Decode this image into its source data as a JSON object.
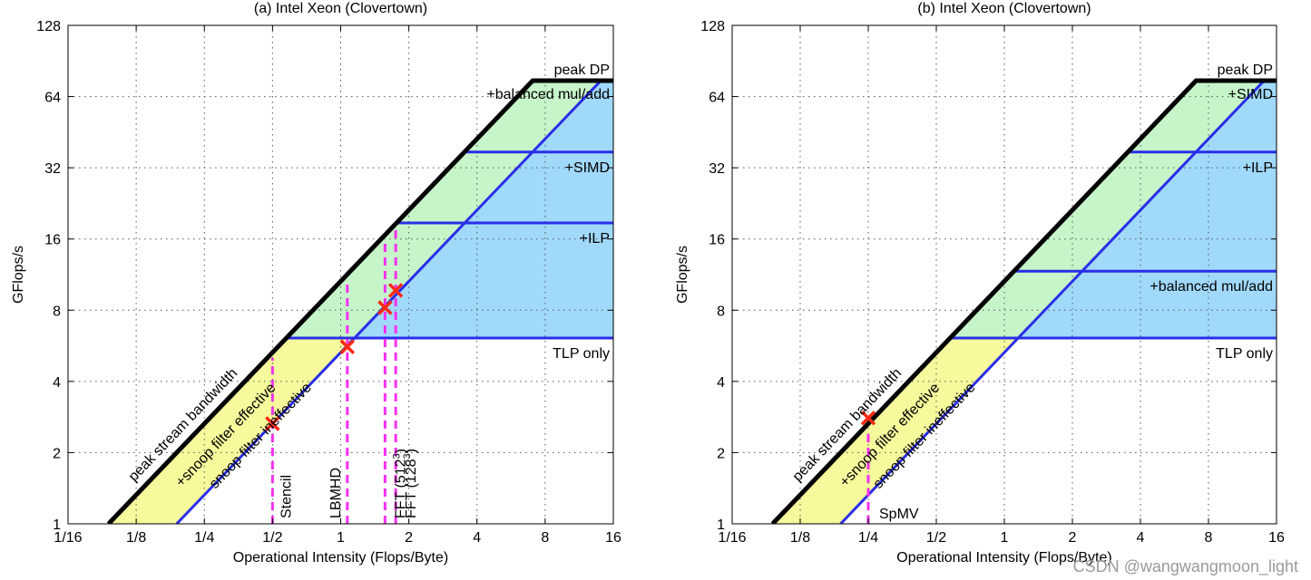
{
  "chart_data": [
    {
      "type": "line",
      "subtype": "roofline",
      "title": "(a) Intel Xeon (Clovertown)",
      "xlabel": "Operational Intensity (Flops/Byte)",
      "ylabel": "GFlops/s",
      "xscale": "log2",
      "yscale": "log2",
      "xlim": [
        0.0625,
        16
      ],
      "ylim": [
        1,
        128
      ],
      "xticks": [
        0.0625,
        0.125,
        0.25,
        0.5,
        1,
        2,
        4,
        8,
        16
      ],
      "xtick_labels": [
        "1/16",
        "1/8",
        "1/4",
        "1/2",
        "1",
        "2",
        "4",
        "8",
        "16"
      ],
      "yticks": [
        1,
        2,
        4,
        8,
        16,
        32,
        64,
        128
      ],
      "ytick_labels": [
        "1",
        "2",
        "4",
        "8",
        "16",
        "32",
        "64",
        "128"
      ],
      "grid": true,
      "peak_compute": 74.7,
      "peak_bandwidth": 10.6,
      "ceilings": [
        {
          "label": "peak DP",
          "value": 74.7
        },
        {
          "label": "+balanced mul/add",
          "value": 74.7,
          "diagonal": true
        },
        {
          "label": "+SIMD",
          "value": 37.3
        },
        {
          "label": "+ILP",
          "value": 18.7
        },
        {
          "label": "TLP only",
          "value": 6.1
        }
      ],
      "bandwidth_ceilings": [
        {
          "label": "peak stream bandwidth",
          "value": 10.6
        },
        {
          "label": "+snoop filter effective",
          "value": 7.2
        },
        {
          "label": "snoop filter ineffective",
          "value": 5.3
        }
      ],
      "kernels": [
        {
          "label": "Stencil",
          "oi": 0.5,
          "gflops": 2.65
        },
        {
          "label": "LBMHD",
          "oi": 1.07,
          "gflops": 5.6
        },
        {
          "label": "FFT (512",
          "sup": "3",
          "close": ")",
          "oi": 1.57,
          "gflops": 8.2
        },
        {
          "label": "FFT (128",
          "sup": "3",
          "close": ")",
          "oi": 1.75,
          "gflops": 9.7
        }
      ]
    },
    {
      "type": "line",
      "subtype": "roofline",
      "title": "(b) Intel Xeon (Clovertown)",
      "xlabel": "Operational Intensity (Flops/Byte)",
      "ylabel": "GFlops/s",
      "xscale": "log2",
      "yscale": "log2",
      "xlim": [
        0.0625,
        16
      ],
      "ylim": [
        1,
        128
      ],
      "xticks": [
        0.0625,
        0.125,
        0.25,
        0.5,
        1,
        2,
        4,
        8,
        16
      ],
      "xtick_labels": [
        "1/16",
        "1/8",
        "1/4",
        "1/2",
        "1",
        "2",
        "4",
        "8",
        "16"
      ],
      "yticks": [
        1,
        2,
        4,
        8,
        16,
        32,
        64,
        128
      ],
      "ytick_labels": [
        "1",
        "2",
        "4",
        "8",
        "16",
        "32",
        "64",
        "128"
      ],
      "grid": true,
      "peak_compute": 74.7,
      "peak_bandwidth": 10.6,
      "ceilings": [
        {
          "label": "peak DP",
          "value": 74.7
        },
        {
          "label": "+SIMD",
          "value": 74.7,
          "diagonal": true
        },
        {
          "label": "+ILP",
          "value": 37.3
        },
        {
          "label": "+balanced mul/add",
          "value": 11.7
        },
        {
          "label": "TLP only",
          "value": 6.1
        }
      ],
      "bandwidth_ceilings": [
        {
          "label": "peak stream bandwidth",
          "value": 10.6
        },
        {
          "label": "+snoop filter effective",
          "value": 7.2
        },
        {
          "label": "snoop filter ineffective",
          "value": 5.3
        }
      ],
      "kernels": [
        {
          "label": "SpMV",
          "oi": 0.25,
          "gflops": 2.8
        }
      ]
    }
  ],
  "watermark": "CSDN @wangwangmoon_light"
}
